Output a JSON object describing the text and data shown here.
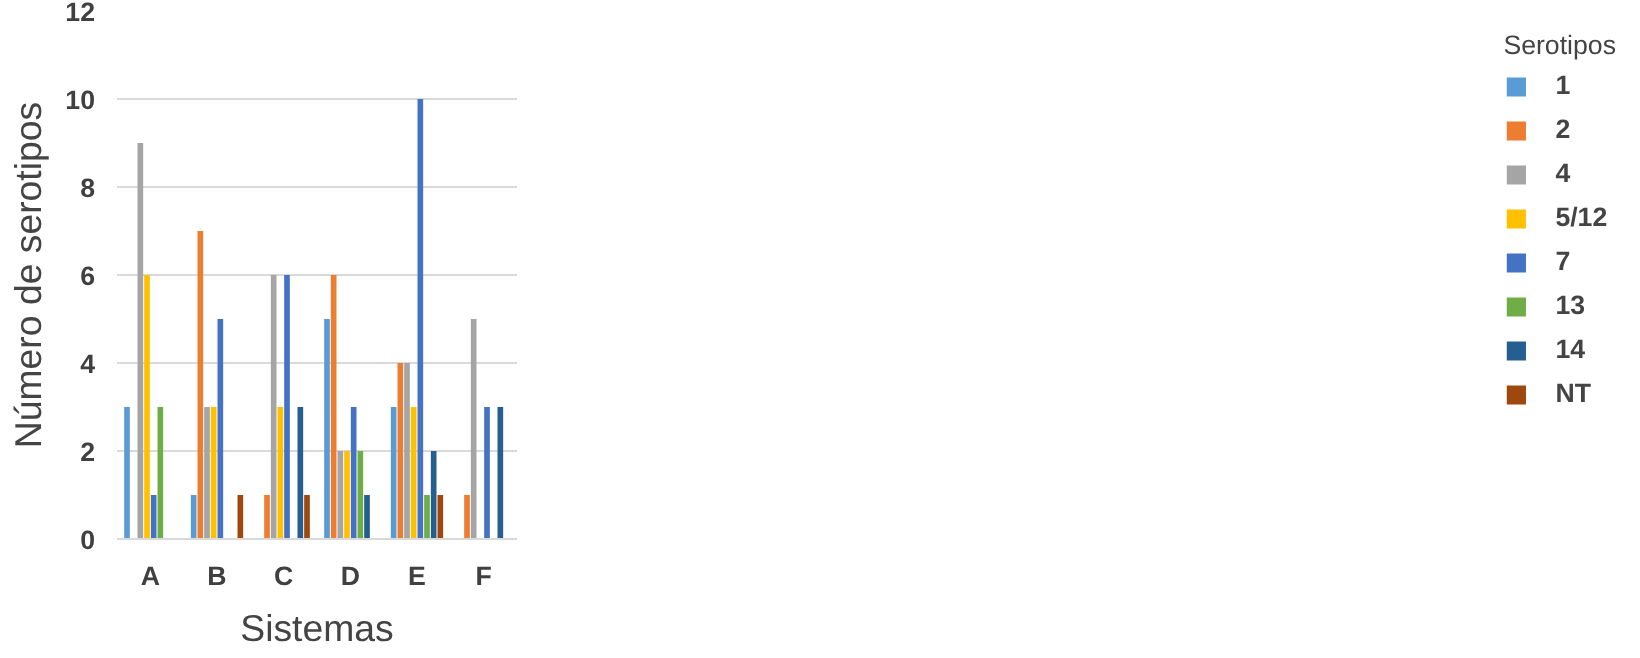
{
  "chart_data": {
    "type": "bar",
    "xlabel": "Sistemas",
    "ylabel": "Número de serotipos",
    "legend_title": "Serotipos",
    "categories": [
      "A",
      "B",
      "C",
      "D",
      "E",
      "F"
    ],
    "series": [
      {
        "name": "1",
        "color": "#5b9bd5",
        "values": [
          3,
          1,
          0,
          5,
          3,
          0
        ]
      },
      {
        "name": "2",
        "color": "#ed7d31",
        "values": [
          0,
          7,
          1,
          6,
          4,
          1
        ]
      },
      {
        "name": "4",
        "color": "#a5a5a5",
        "values": [
          9,
          3,
          6,
          2,
          4,
          5
        ]
      },
      {
        "name": "5/12",
        "color": "#ffc000",
        "values": [
          6,
          3,
          3,
          2,
          3,
          0
        ]
      },
      {
        "name": "7",
        "color": "#4472c4",
        "values": [
          1,
          5,
          6,
          3,
          10,
          3
        ]
      },
      {
        "name": "13",
        "color": "#70ad47",
        "values": [
          3,
          0,
          0,
          2,
          1,
          0
        ]
      },
      {
        "name": "14",
        "color": "#255e91",
        "values": [
          0,
          0,
          3,
          1,
          2,
          3
        ]
      },
      {
        "name": "NT",
        "color": "#9e480e",
        "values": [
          0,
          1,
          1,
          0,
          1,
          0
        ]
      }
    ],
    "ylim": [
      0,
      12
    ],
    "yticks": [
      0,
      2,
      4,
      6,
      8,
      10,
      12
    ],
    "grid": "y",
    "legend": "right"
  }
}
